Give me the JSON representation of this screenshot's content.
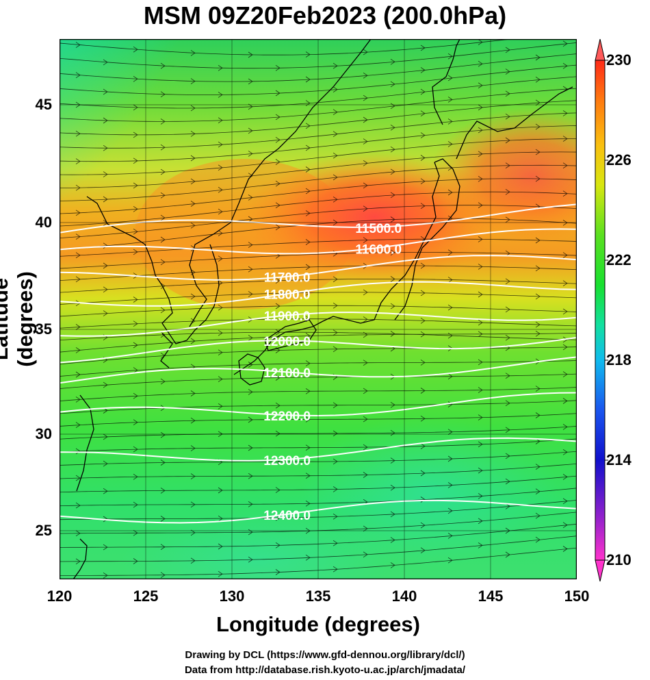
{
  "title": "MSM 09Z20Feb2023 (200.0hPa)",
  "axes": {
    "xlabel": "Longitude (degrees)",
    "ylabel": "Latitude  (degrees)",
    "xticks": [
      "120",
      "125",
      "130",
      "135",
      "140",
      "145",
      "150"
    ],
    "yticks": [
      "45",
      "40",
      "35",
      "30",
      "25"
    ],
    "xlim": [
      120,
      150
    ],
    "ylim": [
      22.4,
      47.6
    ]
  },
  "colorbar": {
    "ticks": [
      "230",
      "226",
      "222",
      "218",
      "214",
      "210"
    ],
    "range": [
      210,
      230
    ],
    "colors": [
      "#ff33cc",
      "#9922cc",
      "#1010cc",
      "#1a55ee",
      "#10bbee",
      "#12e0a0",
      "#18e030",
      "#5ae020",
      "#d8e610",
      "#f9c010",
      "#ff7a10",
      "#ff2a18"
    ]
  },
  "contours": [
    {
      "label": "11500.0",
      "lat_at_136": 39.1
    },
    {
      "label": "11600.0",
      "lat_at_136": 38.0
    },
    {
      "label": "11700.0",
      "lat_at_136": 36.9
    },
    {
      "label": "11800.0",
      "lat_at_136": 35.8
    },
    {
      "label": "11900.0",
      "lat_at_136": 34.5
    },
    {
      "label": "12000.0",
      "lat_at_136": 33.3
    },
    {
      "label": "12100.0",
      "lat_at_136": 32.1
    },
    {
      "label": "12200.0",
      "lat_at_136": 30.4
    },
    {
      "label": "12300.0",
      "lat_at_136": 28.4
    },
    {
      "label": "12400.0",
      "lat_at_136": 25.6
    }
  ],
  "credits": {
    "line1": "Drawing by DCL (https://www.gfd-dennou.org/library/dcl/)",
    "line2": "Data from http://database.rish.kyoto-u.ac.jp/arch/jmadata/"
  }
}
